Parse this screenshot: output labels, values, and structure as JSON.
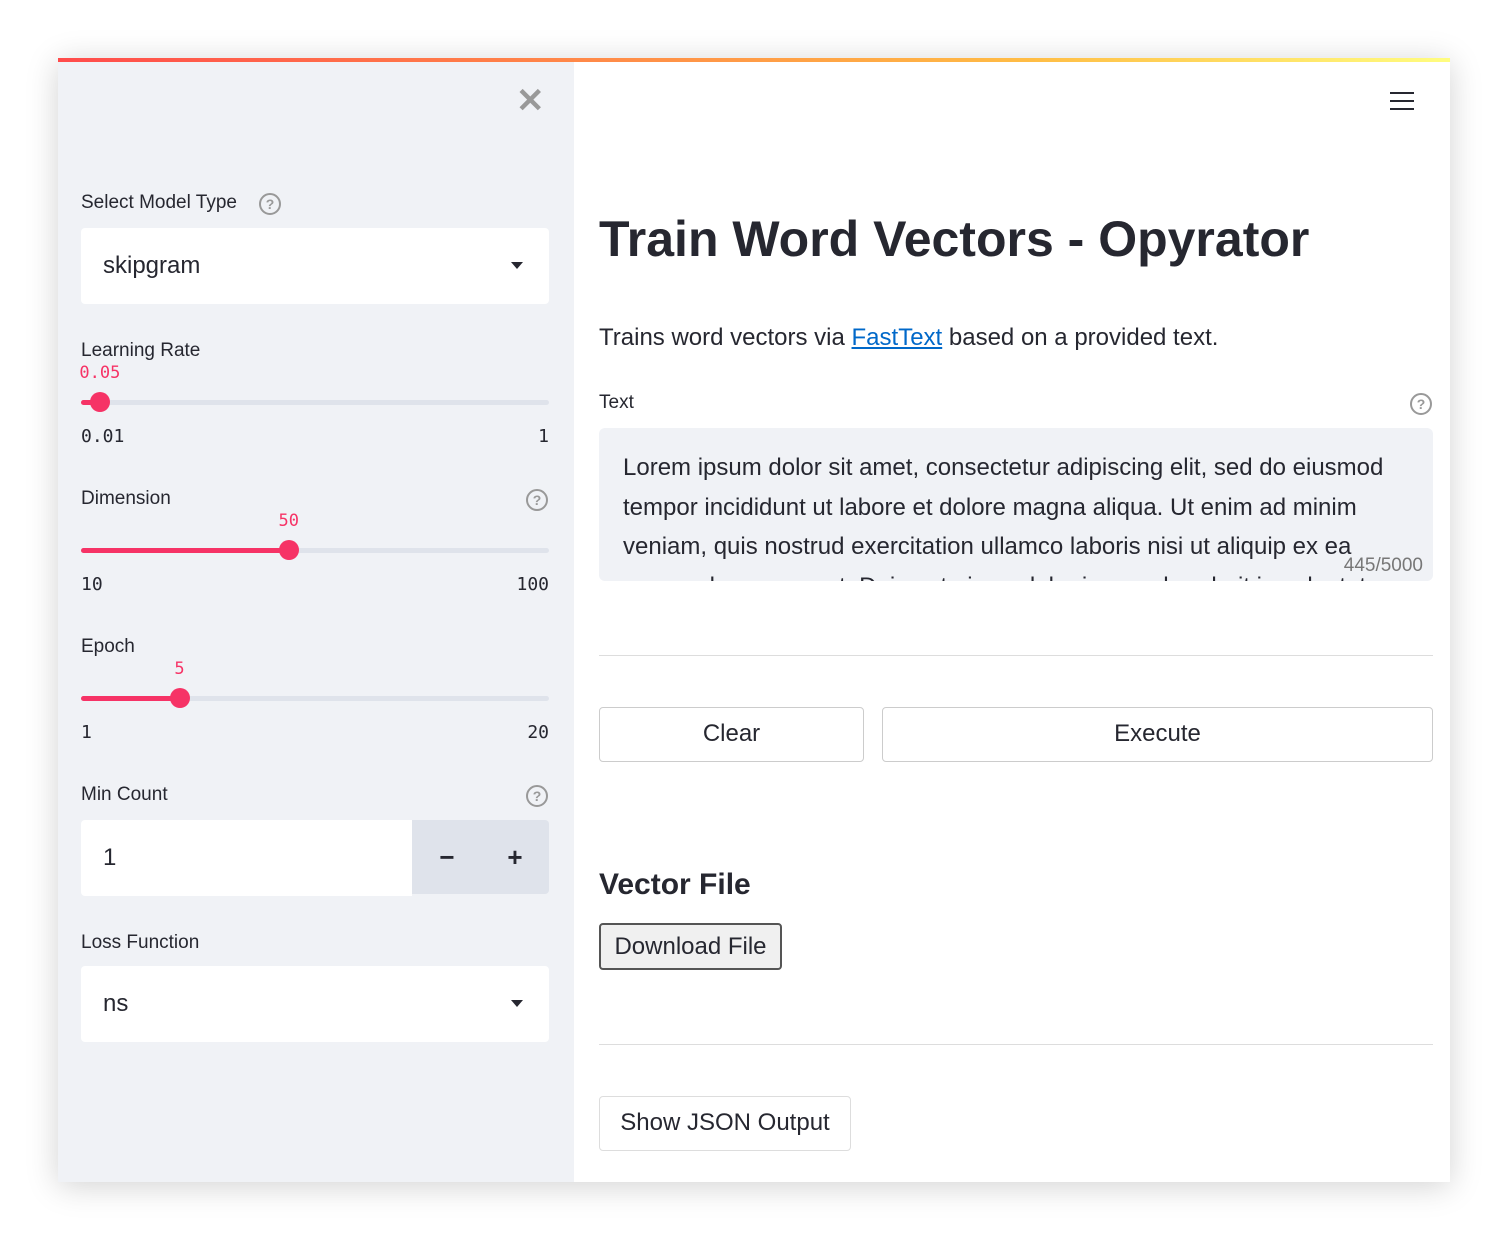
{
  "sidebar": {
    "close_icon": "close-icon",
    "model_type": {
      "label": "Select Model Type",
      "value": "skipgram"
    },
    "learning_rate": {
      "label": "Learning Rate",
      "value": "0.05",
      "min": "0.01",
      "max": "1",
      "fraction": 0.0404
    },
    "dimension": {
      "label": "Dimension",
      "value": "50",
      "min": "10",
      "max": "100",
      "fraction": 0.444
    },
    "epoch": {
      "label": "Epoch",
      "value": "5",
      "min": "1",
      "max": "20",
      "fraction": 0.2105
    },
    "min_count": {
      "label": "Min Count",
      "value": "1",
      "minus": "−",
      "plus": "+"
    },
    "loss_function": {
      "label": "Loss Function",
      "value": "ns"
    }
  },
  "main": {
    "menu_icon": "hamburger-icon",
    "title": "Train Word Vectors - Opyrator",
    "desc_prefix": "Trains word vectors via ",
    "desc_link": "FastText",
    "desc_suffix": " based on a provided text.",
    "text_label": "Text",
    "text_value": "Lorem ipsum dolor sit amet, consectetur adipiscing elit, sed do eiusmod tempor incididunt ut labore et dolore magna aliqua. Ut enim ad minim veniam, quis nostrud exercitation ullamco laboris nisi ut aliquip ex ea commodo consequat. Duis aute irure dolor in reprehenderit in voluptate velit esse cillum dolore eu fugiat nulla pariatur. Excepteur sint occaecat cupidatat non proident, sunt in culpa qui officia deserunt mollit anim id est laborum.",
    "char_count": "445/5000",
    "clear_label": "Clear",
    "execute_label": "Execute",
    "vector_heading": "Vector File",
    "download_label": "Download File",
    "json_label": "Show JSON Output"
  },
  "colors": {
    "accent": "#f63366",
    "sidebar_bg": "#f0f2f6",
    "link": "#0068c9"
  }
}
